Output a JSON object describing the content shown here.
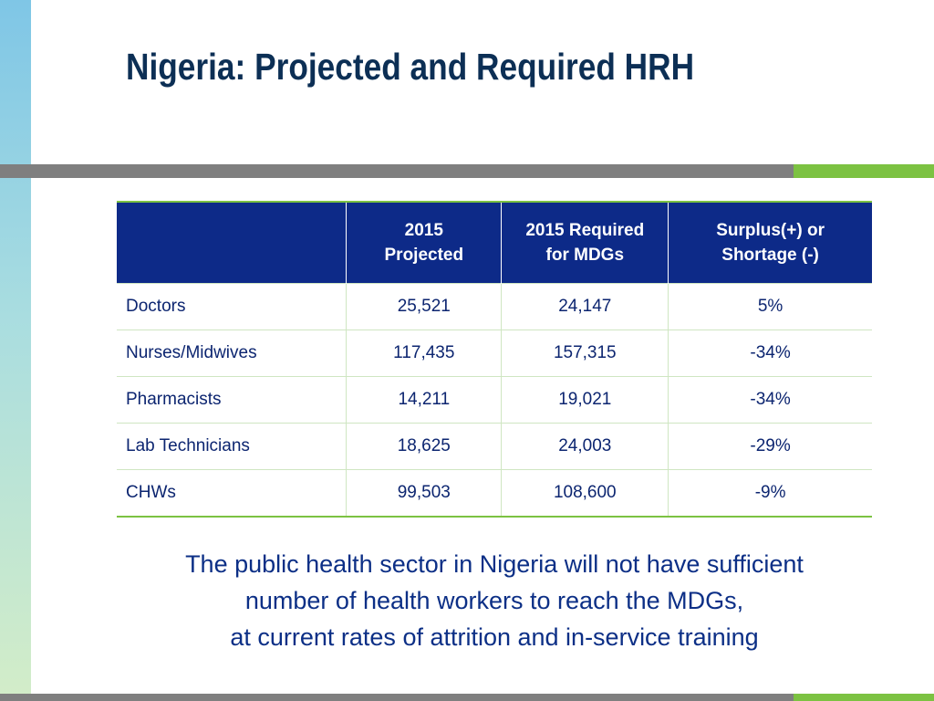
{
  "slide": {
    "title": "Nigeria: Projected and Required HRH",
    "colors": {
      "title": "#0c2f55",
      "header_bg": "#0d2a88",
      "accent_green": "#7cc242",
      "rule_gray": "#7f7f7f",
      "body_text": "#0c2570"
    }
  },
  "table": {
    "headers": [
      "",
      "2015 Projected",
      "2015 Required for MDGs",
      "Surplus(+) or Shortage (-)"
    ],
    "header_lines": [
      [
        ""
      ],
      [
        "2015",
        "Projected"
      ],
      [
        "2015 Required",
        "for MDGs"
      ],
      [
        "Surplus(+) or",
        "Shortage (-)"
      ]
    ],
    "rows": [
      {
        "category": "Doctors",
        "projected": "25,521",
        "required": "24,147",
        "difference": "5%"
      },
      {
        "category": "Nurses/Midwives",
        "projected": "117,435",
        "required": "157,315",
        "difference": "-34%"
      },
      {
        "category": "Pharmacists",
        "projected": "14,211",
        "required": "19,021",
        "difference": "-34%"
      },
      {
        "category": "Lab Technicians",
        "projected": "18,625",
        "required": "24,003",
        "difference": "-29%"
      },
      {
        "category": "CHWs",
        "projected": "99,503",
        "required": "108,600",
        "difference": "-9%"
      }
    ]
  },
  "summary": {
    "lines": [
      "The public health sector in Nigeria will not have sufficient",
      "number of health workers to reach the MDGs,",
      "at current rates of attrition and in-service training"
    ]
  }
}
